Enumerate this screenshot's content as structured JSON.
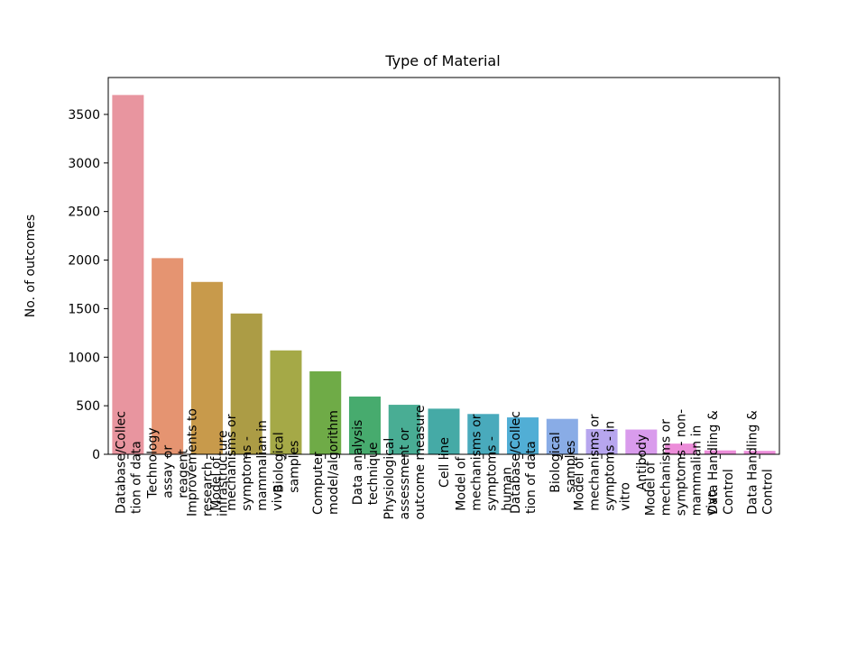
{
  "chart_data": {
    "type": "bar",
    "title": "Type of Material",
    "xlabel": "",
    "ylabel": "No. of outcomes",
    "ylim": [
      0,
      3880
    ],
    "yticks": [
      0,
      500,
      1000,
      1500,
      2000,
      2500,
      3000,
      3500
    ],
    "grid": false,
    "categories": [
      [
        "Database/Collec",
        "tion of data"
      ],
      [
        "Technology",
        "assay or",
        "reagent"
      ],
      [
        "Improvements to",
        "research",
        "infrastructure"
      ],
      [
        "Model of",
        "mechanisms or",
        "symptoms -",
        "mammalian in",
        "vivo"
      ],
      [
        "Biological",
        "samples"
      ],
      [
        "Computer",
        "model/algorithm"
      ],
      [
        "Data analysis",
        "technique"
      ],
      [
        "Physiological",
        "assessment or",
        "outcome measure"
      ],
      [
        "Cell line"
      ],
      [
        "Model of",
        "mechanisms or",
        "symptoms -",
        "human"
      ],
      [
        "Database/Collec",
        "tion of data"
      ],
      [
        "Biological",
        "samples"
      ],
      [
        "Model of",
        "mechanisms or",
        "symptoms - in",
        "vitro"
      ],
      [
        "Antibody"
      ],
      [
        "Model of",
        "mechanisms or",
        "symptoms - non-",
        "mammalian in",
        "vivo"
      ],
      [
        "Data Handling &",
        "Control"
      ],
      [
        "Data Handling &",
        "Control"
      ]
    ],
    "values": [
      3700,
      2020,
      1775,
      1450,
      1070,
      855,
      595,
      510,
      470,
      415,
      380,
      365,
      260,
      255,
      110,
      40,
      35
    ],
    "colors": [
      "#e8959f",
      "#e59471",
      "#c89a4b",
      "#ac9c45",
      "#a5a947",
      "#6fab47",
      "#47ab6e",
      "#49ad94",
      "#45aaa6",
      "#49aabc",
      "#51aed5",
      "#89ace6",
      "#b7a6ee",
      "#d99bec",
      "#ec8dd9",
      "#ec8dd9",
      "#ec8dd9"
    ]
  }
}
